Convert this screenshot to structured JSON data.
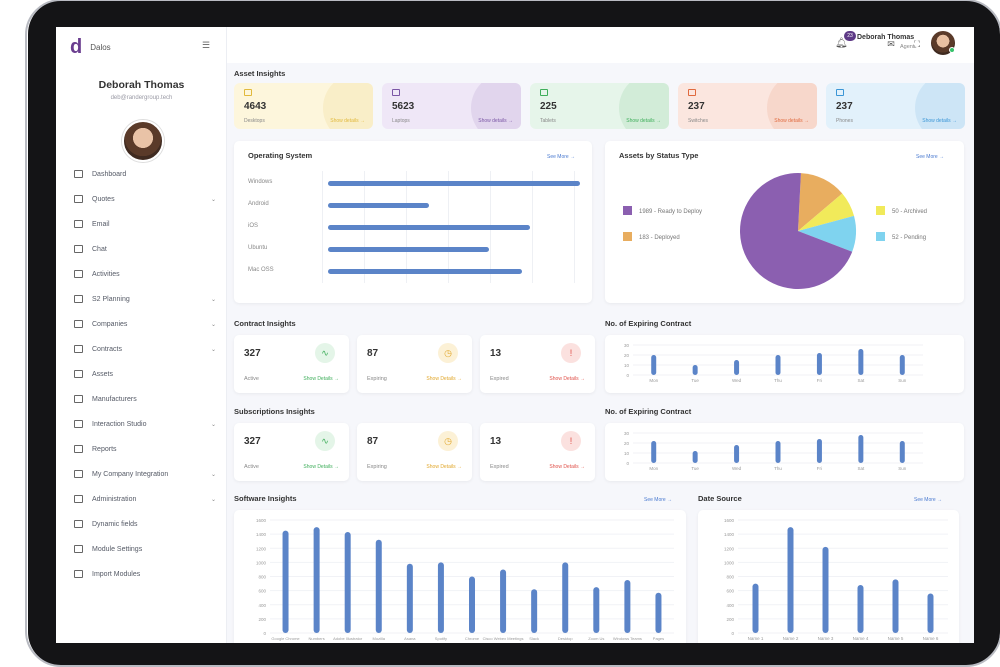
{
  "brand": {
    "logo": "d",
    "name": "Dalos"
  },
  "profile": {
    "name": "Deborah Thomas",
    "email": "deb@randergroup.tech"
  },
  "topbar": {
    "notification_count": "23",
    "user_name": "Deborah Thomas",
    "user_role": "Agent"
  },
  "sidebar": {
    "items": [
      {
        "label": "Dashboard",
        "icon": "dashboard-icon",
        "chevron": false
      },
      {
        "label": "Quotes",
        "icon": "quotes-icon",
        "chevron": true
      },
      {
        "label": "Email",
        "icon": "email-icon",
        "chevron": false
      },
      {
        "label": "Chat",
        "icon": "chat-icon",
        "chevron": false
      },
      {
        "label": "Activities",
        "icon": "activities-icon",
        "chevron": false
      },
      {
        "label": "S2 Planning",
        "icon": "planning-icon",
        "chevron": true
      },
      {
        "label": "Companies",
        "icon": "companies-icon",
        "chevron": true
      },
      {
        "label": "Contracts",
        "icon": "contracts-icon",
        "chevron": true
      },
      {
        "label": "Assets",
        "icon": "assets-icon",
        "chevron": false
      },
      {
        "label": "Manufacturers",
        "icon": "manufacturers-icon",
        "chevron": false
      },
      {
        "label": "Interaction Studio",
        "icon": "studio-icon",
        "chevron": true
      },
      {
        "label": "Reports",
        "icon": "reports-icon",
        "chevron": false
      },
      {
        "label": "My Company Integration",
        "icon": "integration-icon",
        "chevron": true
      },
      {
        "label": "Administration",
        "icon": "administration-icon",
        "chevron": true
      },
      {
        "label": "Dynamic fields",
        "icon": "fields-icon",
        "chevron": false
      },
      {
        "label": "Module Settings",
        "icon": "settings-icon",
        "chevron": false
      },
      {
        "label": "Import Modules",
        "icon": "import-icon",
        "chevron": false
      }
    ]
  },
  "asset_insights": {
    "title": "Asset Insights",
    "cards": [
      {
        "value": "4643",
        "label": "Desktops",
        "link": "Show details →",
        "bg": "#fdf6dc",
        "accent": "#e1b93c"
      },
      {
        "value": "5623",
        "label": "Laptops",
        "link": "Show details →",
        "bg": "#efe7f7",
        "accent": "#7b56a6"
      },
      {
        "value": "225",
        "label": "Tablets",
        "link": "Show details →",
        "bg": "#e6f5ea",
        "accent": "#3fae5b"
      },
      {
        "value": "237",
        "label": "Switches",
        "link": "Show details →",
        "bg": "#fbe6df",
        "accent": "#e06a3f"
      },
      {
        "value": "237",
        "label": "Phones",
        "link": "Show details →",
        "bg": "#e2f1fb",
        "accent": "#3b96d6"
      }
    ]
  },
  "operating_system": {
    "title": "Operating System",
    "see_more": "See More →"
  },
  "assets_by_status": {
    "title": "Assets by Status Type",
    "see_more": "See More →"
  },
  "contract_insights": {
    "title": "Contract Insights",
    "cards": [
      {
        "value": "327",
        "label": "Active",
        "link": "Show Details →",
        "link_color": "#3fae5b",
        "icon": "activity-icon",
        "icon_bg": "#e4f5e8",
        "icon_color": "#3fae5b",
        "glyph": "∿"
      },
      {
        "value": "87",
        "label": "Expiring",
        "link": "Show Details →",
        "link_color": "#e1a72c",
        "icon": "timer-icon",
        "icon_bg": "#fcf1d6",
        "icon_color": "#e1a72c",
        "glyph": "◷"
      },
      {
        "value": "13",
        "label": "Expired",
        "link": "Show Details →",
        "link_color": "#e0514a",
        "icon": "alert-icon",
        "icon_bg": "#fbe1df",
        "icon_color": "#e0514a",
        "glyph": "!"
      }
    ]
  },
  "subscription_insights": {
    "title": "Subscriptions Insights",
    "cards": [
      {
        "value": "327",
        "label": "Active",
        "link": "Show Details →",
        "link_color": "#3fae5b",
        "icon": "activity-icon",
        "icon_bg": "#e4f5e8",
        "icon_color": "#3fae5b",
        "glyph": "∿"
      },
      {
        "value": "87",
        "label": "Expiring",
        "link": "Show Details →",
        "link_color": "#e1a72c",
        "icon": "timer-icon",
        "icon_bg": "#fcf1d6",
        "icon_color": "#e1a72c",
        "glyph": "◷"
      },
      {
        "value": "13",
        "label": "Expired",
        "link": "Show Details →",
        "link_color": "#e0514a",
        "icon": "alert-icon",
        "icon_bg": "#fbe1df",
        "icon_color": "#e0514a",
        "glyph": "!"
      }
    ]
  },
  "expiring_1": {
    "title": "No. of Expiring Contract"
  },
  "expiring_2": {
    "title": "No. of Expiring Contract"
  },
  "software_insights": {
    "title": "Software Insights",
    "see_more": "See More →"
  },
  "data_source": {
    "title": "Date Source",
    "see_more": "See More →"
  },
  "chart_data": [
    {
      "id": "os",
      "type": "bar",
      "orientation": "horizontal",
      "categories": [
        "Windows",
        "Android",
        "iOS",
        "Ubuntu",
        "Mac OSS"
      ],
      "values": [
        100,
        40,
        80,
        64,
        77
      ],
      "grid": true,
      "color": "#5b84c8"
    },
    {
      "id": "status",
      "type": "pie",
      "labels": [
        "1989 - Ready to Deploy",
        "183 - Deployed",
        "50 - Archived",
        "52 - Pending"
      ],
      "values": [
        1989,
        183,
        50,
        52
      ],
      "colors": [
        "#8b5fb0",
        "#e8ad5f",
        "#f1ea5a",
        "#7fd3ef"
      ],
      "legend_position": "sides"
    },
    {
      "id": "expiring1",
      "type": "bar",
      "categories": [
        "Mon",
        "Tue",
        "Wed",
        "Thu",
        "Fri",
        "Sat",
        "Sun"
      ],
      "values": [
        20,
        10,
        15,
        20,
        22,
        26,
        20
      ],
      "y_ticks": [
        "30",
        "20",
        "10",
        "0"
      ],
      "ylim": [
        0,
        30
      ],
      "color": "#5b84c8"
    },
    {
      "id": "expiring2",
      "type": "bar",
      "categories": [
        "Mon",
        "Tue",
        "Wed",
        "Thu",
        "Fri",
        "Sat",
        "Sun"
      ],
      "values": [
        22,
        12,
        18,
        22,
        24,
        28,
        22
      ],
      "y_ticks": [
        "30",
        "20",
        "10",
        "0"
      ],
      "ylim": [
        0,
        30
      ],
      "color": "#5b84c8"
    },
    {
      "id": "software",
      "type": "bar",
      "categories": [
        "Google Chrome",
        "Numbers",
        "Adobe Illustrator",
        "Mozilla",
        "Asana",
        "Spotify",
        "Chrome",
        "Cisco Webex Meetings",
        "Slack",
        "Desktop",
        "Zoom Us",
        "Windows Teams",
        "Pages"
      ],
      "values": [
        1450,
        1500,
        1430,
        1320,
        980,
        1000,
        800,
        900,
        620,
        1000,
        650,
        750,
        570
      ],
      "y_ticks": [
        "1600",
        "1400",
        "1200",
        "1000",
        "800",
        "600",
        "400",
        "200",
        "0"
      ],
      "ylim": [
        0,
        1600
      ],
      "color": "#5b84c8"
    },
    {
      "id": "datasource",
      "type": "bar",
      "categories": [
        "Name 1",
        "Name 2",
        "Name 3",
        "Name 4",
        "Name 5",
        "Name 6"
      ],
      "values": [
        700,
        1500,
        1220,
        680,
        760,
        560
      ],
      "y_ticks": [
        "1600",
        "1400",
        "1200",
        "1000",
        "800",
        "600",
        "400",
        "200",
        "0"
      ],
      "ylim": [
        0,
        1600
      ],
      "color": "#5b84c8"
    }
  ]
}
